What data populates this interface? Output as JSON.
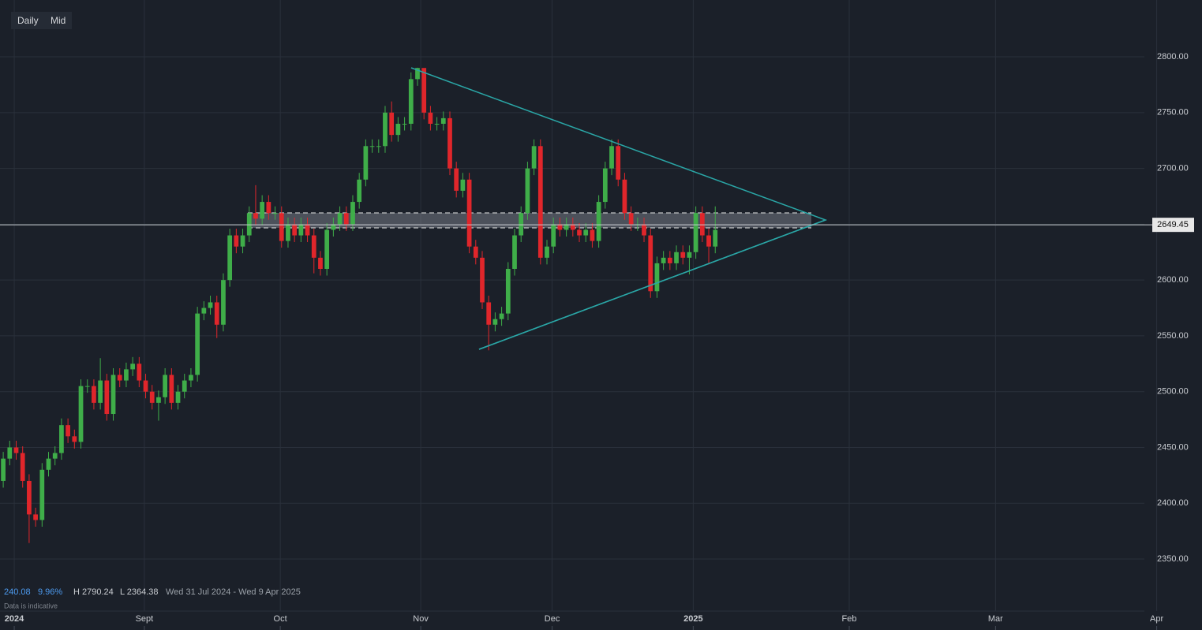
{
  "toolbar": {
    "interval": "Daily",
    "price_type": "Mid"
  },
  "info": {
    "change": "240.08",
    "change_pct": "9.96%",
    "high": "H 2790.24",
    "low": "L 2364.38",
    "range": "Wed 31 Jul 2024 - Wed 9 Apr 2025",
    "note": "Data is indicative"
  },
  "chart_data": {
    "type": "candlestick",
    "up_color": "#3fae49",
    "down_color": "#e0262b",
    "xlim": [
      -0.5,
      176.3
    ],
    "xticks": [
      {
        "value": 1.7,
        "label": "2024"
      },
      {
        "value": 21.8,
        "label": "Sept"
      },
      {
        "value": 42.8,
        "label": "Oct"
      },
      {
        "value": 64.5,
        "label": "Nov"
      },
      {
        "value": 84.8,
        "label": "Dec"
      },
      {
        "value": 106.6,
        "label": "2025"
      },
      {
        "value": 130.7,
        "label": "Feb"
      },
      {
        "value": 153.3,
        "label": "Mar"
      },
      {
        "value": 178.2,
        "label": "Apr"
      }
    ],
    "ylim": [
      2303.4,
      2850.9
    ],
    "yticks": [
      {
        "value": 2350,
        "label": "2350.00"
      },
      {
        "value": 2400,
        "label": "2400.00"
      },
      {
        "value": 2450,
        "label": "2450.00"
      },
      {
        "value": 2500,
        "label": "2500.00"
      },
      {
        "value": 2550,
        "label": "2550.00"
      },
      {
        "value": 2600,
        "label": "2600.00"
      },
      {
        "value": 2650,
        "label": "2650.00"
      },
      {
        "value": 2700,
        "label": "2700.00"
      },
      {
        "value": 2750,
        "label": "2750.00"
      },
      {
        "value": 2800,
        "label": "2800.00"
      }
    ],
    "grid": true,
    "last_price": 2649.45,
    "open": [
      2420,
      2440,
      2450,
      2445,
      2420,
      2390,
      2385,
      2430,
      2440,
      2445,
      2470,
      2460,
      2455,
      2505,
      2505,
      2490,
      2510,
      2480,
      2515,
      2510,
      2520,
      2525,
      2510,
      2500,
      2490,
      2495,
      2515,
      2490,
      2500,
      2510,
      2515,
      2570,
      2575,
      2580,
      2560,
      2600,
      2640,
      2630,
      2640,
      2660,
      2655,
      2670,
      2660,
      2660,
      2635,
      2650,
      2640,
      2650,
      2640,
      2620,
      2610,
      2645,
      2650,
      2660,
      2650,
      2670,
      2690,
      2720,
      2720,
      2720,
      2750,
      2730,
      2740,
      2740,
      2780,
      2790,
      2750,
      2740,
      2740,
      2745,
      2700,
      2680,
      2690,
      2630,
      2620,
      2580,
      2560,
      2565,
      2570,
      2610,
      2640,
      2660,
      2700,
      2720,
      2620,
      2630,
      2650,
      2645,
      2650,
      2645,
      2640,
      2645,
      2635,
      2670,
      2700,
      2720,
      2690,
      2660,
      2650,
      2650,
      2640,
      2590,
      2615,
      2620,
      2615,
      2625,
      2620,
      2625,
      2660,
      2640,
      2630
    ],
    "high": [
      2446,
      2456,
      2456,
      2451,
      2426,
      2396,
      2436,
      2446,
      2451,
      2476,
      2476,
      2466,
      2511,
      2511,
      2511,
      2530,
      2516,
      2521,
      2521,
      2526,
      2531,
      2531,
      2516,
      2506,
      2501,
      2521,
      2521,
      2506,
      2516,
      2521,
      2576,
      2581,
      2586,
      2586,
      2606,
      2646,
      2646,
      2646,
      2666,
      2685,
      2676,
      2676,
      2666,
      2666,
      2656,
      2656,
      2656,
      2656,
      2646,
      2626,
      2651,
      2656,
      2666,
      2666,
      2676,
      2696,
      2726,
      2726,
      2726,
      2756,
      2760,
      2746,
      2746,
      2786,
      2790.24,
      2788,
      2756,
      2746,
      2751,
      2751,
      2706,
      2696,
      2696,
      2636,
      2626,
      2586,
      2571,
      2576,
      2616,
      2646,
      2666,
      2706,
      2726,
      2726,
      2636,
      2656,
      2656,
      2656,
      2656,
      2651,
      2651,
      2651,
      2676,
      2706,
      2726,
      2726,
      2696,
      2666,
      2656,
      2656,
      2646,
      2621,
      2626,
      2626,
      2631,
      2631,
      2631,
      2666,
      2666,
      2646,
      2666
    ],
    "low": [
      2414,
      2434,
      2439,
      2414,
      2364.38,
      2379,
      2379,
      2424,
      2434,
      2439,
      2454,
      2449,
      2449,
      2499,
      2484,
      2484,
      2474,
      2474,
      2504,
      2504,
      2514,
      2504,
      2494,
      2484,
      2474,
      2489,
      2484,
      2484,
      2494,
      2504,
      2509,
      2564,
      2569,
      2548,
      2554,
      2594,
      2624,
      2624,
      2634,
      2649,
      2649,
      2654,
      2654,
      2629,
      2629,
      2634,
      2634,
      2634,
      2606,
      2604,
      2604,
      2639,
      2644,
      2644,
      2644,
      2664,
      2684,
      2714,
      2714,
      2714,
      2724,
      2724,
      2734,
      2734,
      2774,
      2744,
      2734,
      2734,
      2734,
      2694,
      2674,
      2674,
      2624,
      2614,
      2574,
      2537,
      2554,
      2559,
      2564,
      2604,
      2634,
      2654,
      2694,
      2614,
      2614,
      2624,
      2639,
      2639,
      2639,
      2634,
      2634,
      2629,
      2629,
      2664,
      2694,
      2684,
      2654,
      2644,
      2644,
      2634,
      2584,
      2584,
      2609,
      2609,
      2609,
      2614,
      2605,
      2619,
      2634,
      2614,
      2624
    ],
    "close": [
      2440,
      2450,
      2445,
      2420,
      2390,
      2385,
      2430,
      2440,
      2445,
      2470,
      2460,
      2455,
      2505,
      2505,
      2490,
      2510,
      2480,
      2515,
      2510,
      2520,
      2525,
      2510,
      2500,
      2490,
      2495,
      2515,
      2490,
      2500,
      2510,
      2515,
      2570,
      2575,
      2580,
      2560,
      2600,
      2640,
      2630,
      2640,
      2660,
      2655,
      2670,
      2660,
      2660,
      2635,
      2650,
      2640,
      2650,
      2640,
      2620,
      2610,
      2645,
      2650,
      2660,
      2650,
      2670,
      2690,
      2720,
      2720,
      2720,
      2750,
      2730,
      2740,
      2740,
      2780,
      2790,
      2750,
      2740,
      2740,
      2745,
      2700,
      2680,
      2690,
      2630,
      2620,
      2580,
      2560,
      2565,
      2570,
      2610,
      2640,
      2660,
      2700,
      2720,
      2620,
      2630,
      2650,
      2645,
      2650,
      2645,
      2640,
      2645,
      2635,
      2670,
      2700,
      2720,
      2690,
      2660,
      2650,
      2650,
      2640,
      2590,
      2615,
      2620,
      2615,
      2625,
      2620,
      2625,
      2660,
      2640,
      2630,
      2645
    ]
  }
}
